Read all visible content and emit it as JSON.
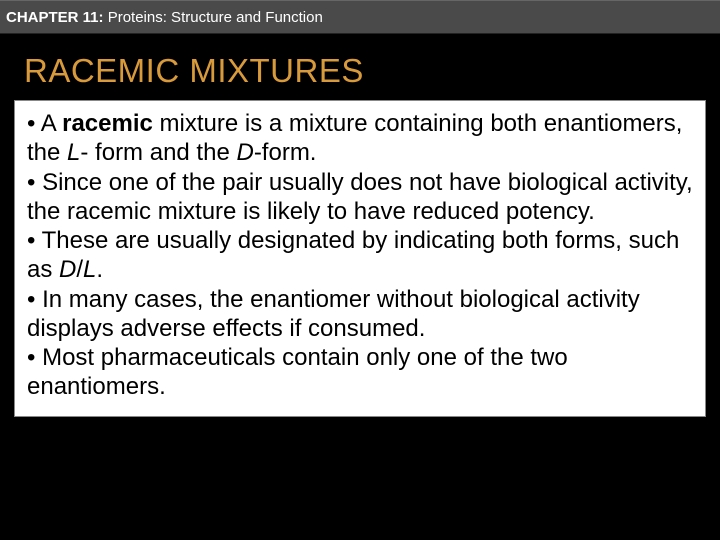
{
  "header": {
    "chapter_bold": "CHAPTER 11:",
    "chapter_rest": " Proteins: Structure and Function"
  },
  "title": "RACEMIC MIXTURES",
  "content": [
    {
      "parts": [
        {
          "t": "• A ",
          "cls": ""
        },
        {
          "t": "racemic",
          "cls": "bold"
        },
        {
          "t": " mixture is a mixture containing both enantiomers, the ",
          "cls": ""
        },
        {
          "t": "L",
          "cls": "italic"
        },
        {
          "t": "- form and the ",
          "cls": ""
        },
        {
          "t": "D",
          "cls": "italic"
        },
        {
          "t": "-form.",
          "cls": ""
        }
      ]
    },
    {
      "parts": [
        {
          "t": "• Since one of the pair usually does not have biological activity, the racemic mixture is likely to have reduced potency.",
          "cls": ""
        }
      ]
    },
    {
      "parts": [
        {
          "t": "• These are usually designated by indicating both forms, such as ",
          "cls": ""
        },
        {
          "t": "D",
          "cls": "italic"
        },
        {
          "t": "/",
          "cls": ""
        },
        {
          "t": "L",
          "cls": "italic"
        },
        {
          "t": ".",
          "cls": ""
        }
      ]
    },
    {
      "parts": [
        {
          "t": "• In many cases, the enantiomer without biological activity displays adverse effects if consumed.",
          "cls": ""
        }
      ]
    },
    {
      "parts": [
        {
          "t": "• Most pharmaceuticals contain only one of the two enantiomers.",
          "cls": ""
        }
      ]
    }
  ],
  "colors": {
    "background": "#000000",
    "header_bg": "#4a4a4a",
    "header_text": "#ffffff",
    "title_color": "#d89a3a",
    "content_bg": "#ffffff",
    "content_text": "#000000"
  }
}
